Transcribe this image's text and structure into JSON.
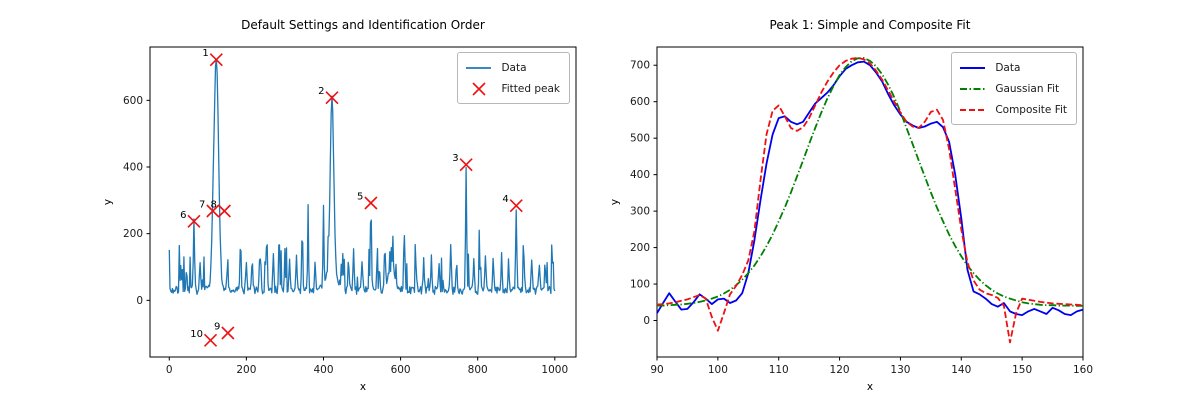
{
  "figure": {
    "background": "#ffffff"
  },
  "chart_data": [
    {
      "type": "line",
      "title": "Default Settings and Identification Order",
      "xlabel": "x",
      "ylabel": "y",
      "xlim": [
        -50,
        1055
      ],
      "ylim": [
        -170,
        760
      ],
      "xticks": [
        0,
        200,
        400,
        600,
        800,
        1000
      ],
      "yticks": [
        0,
        200,
        400,
        600
      ],
      "legend": [
        "Data",
        "Fitted peak"
      ],
      "series": [
        {
          "name": "Data",
          "color": "#1f77b4",
          "style": "solid"
        }
      ],
      "marker_color": "#ee1111",
      "signal": {
        "x_range": [
          0,
          1000
        ],
        "x_step": 2,
        "baseline_mean": 30,
        "noise_seed": 7,
        "peaks": [
          [
            122,
            690,
            6
          ],
          [
            113,
            70,
            3.5
          ],
          [
            422,
            505,
            4.5
          ],
          [
            421,
            75,
            13
          ],
          [
            575,
            55,
            9
          ]
        ],
        "spike_sigma": 1.5,
        "spikes": [
          [
            30,
            70
          ],
          [
            45,
            60
          ],
          [
            64,
            205
          ],
          [
            80,
            75
          ],
          [
            150,
            60
          ],
          [
            185,
            150
          ],
          [
            200,
            90
          ],
          [
            215,
            100
          ],
          [
            235,
            105
          ],
          [
            253,
            165
          ],
          [
            270,
            115
          ],
          [
            285,
            180
          ],
          [
            300,
            120
          ],
          [
            312,
            85
          ],
          [
            330,
            100
          ],
          [
            345,
            185
          ],
          [
            360,
            160
          ],
          [
            378,
            85
          ],
          [
            400,
            115
          ],
          [
            450,
            105
          ],
          [
            465,
            90
          ],
          [
            478,
            135
          ],
          [
            500,
            85
          ],
          [
            523,
            255
          ],
          [
            545,
            75
          ],
          [
            560,
            95
          ],
          [
            580,
            110
          ],
          [
            610,
            155
          ],
          [
            640,
            85
          ],
          [
            660,
            105
          ],
          [
            680,
            100
          ],
          [
            700,
            90
          ],
          [
            730,
            135
          ],
          [
            745,
            80
          ],
          [
            770,
            372
          ],
          [
            790,
            95
          ],
          [
            805,
            85
          ],
          [
            820,
            100
          ],
          [
            840,
            95
          ],
          [
            862,
            110
          ],
          [
            880,
            85
          ],
          [
            900,
            252
          ],
          [
            920,
            90
          ],
          [
            940,
            100
          ],
          [
            960,
            85
          ],
          [
            975,
            80
          ],
          [
            995,
            115
          ]
        ]
      },
      "fitted_peaks": [
        {
          "order": "1",
          "x": 122,
          "y": 722
        },
        {
          "order": "2",
          "x": 422,
          "y": 608
        },
        {
          "order": "3",
          "x": 770,
          "y": 407
        },
        {
          "order": "4",
          "x": 900,
          "y": 284
        },
        {
          "order": "5",
          "x": 523,
          "y": 292
        },
        {
          "order": "6",
          "x": 64,
          "y": 237
        },
        {
          "order": "7",
          "x": 113,
          "y": 268
        },
        {
          "order": "8",
          "x": 143,
          "y": 268
        },
        {
          "order": "9",
          "x": 152,
          "y": -98
        },
        {
          "order": "10",
          "x": 107,
          "y": -120
        }
      ]
    },
    {
      "type": "line",
      "title": "Peak 1: Simple and Composite Fit",
      "xlabel": "x",
      "ylabel": "y",
      "xlim": [
        90,
        160
      ],
      "ylim": [
        -100,
        750
      ],
      "xticks": [
        90,
        100,
        110,
        120,
        130,
        140,
        150,
        160
      ],
      "yticks": [
        0,
        100,
        200,
        300,
        400,
        500,
        600,
        700
      ],
      "legend": [
        "Data",
        "Gaussian Fit",
        "Composite Fit"
      ],
      "x_start": 90,
      "x_step": 1,
      "series": [
        {
          "name": "Data",
          "color": "#0000ee",
          "style": "solid",
          "y": [
            20,
            48,
            75,
            52,
            30,
            32,
            50,
            72,
            60,
            45,
            58,
            60,
            48,
            55,
            75,
            130,
            220,
            330,
            430,
            510,
            555,
            560,
            545,
            538,
            545,
            570,
            595,
            610,
            625,
            645,
            670,
            690,
            700,
            708,
            710,
            700,
            680,
            655,
            620,
            590,
            565,
            545,
            535,
            528,
            532,
            540,
            545,
            530,
            490,
            400,
            280,
            140,
            80,
            72,
            60,
            45,
            38,
            48,
            25,
            18,
            15,
            25,
            32,
            25,
            18,
            35,
            28,
            18,
            15,
            25,
            30
          ]
        },
        {
          "name": "Gaussian Fit",
          "color": "#008000",
          "style": "dashdot",
          "y": [
            41,
            41,
            42,
            43,
            44,
            46,
            48,
            51,
            55,
            60,
            66,
            74,
            84,
            97,
            112,
            130,
            151,
            176,
            204,
            236,
            272,
            310,
            351,
            395,
            439,
            484,
            528,
            570,
            609,
            643,
            673,
            695,
            711,
            719,
            720,
            712,
            697,
            675,
            646,
            612,
            573,
            528,
            484,
            439,
            395,
            351,
            310,
            272,
            236,
            204,
            176,
            151,
            130,
            112,
            97,
            84,
            74,
            66,
            60,
            55,
            50,
            47,
            45,
            43,
            42,
            42,
            41,
            41,
            41,
            40,
            40
          ]
        },
        {
          "name": "Composite Fit",
          "color": "#ee1111",
          "style": "dashed",
          "y": [
            44,
            45,
            47,
            50,
            54,
            58,
            64,
            70,
            60,
            10,
            -28,
            20,
            72,
            95,
            125,
            165,
            245,
            385,
            510,
            575,
            590,
            560,
            528,
            520,
            530,
            555,
            590,
            625,
            655,
            680,
            700,
            712,
            718,
            720,
            716,
            705,
            685,
            660,
            630,
            600,
            570,
            545,
            532,
            528,
            545,
            572,
            578,
            550,
            470,
            360,
            250,
            160,
            110,
            85,
            75,
            70,
            62,
            40,
            -60,
            20,
            60,
            57,
            54,
            51,
            49,
            47,
            46,
            45,
            44,
            43,
            42
          ]
        }
      ]
    }
  ]
}
